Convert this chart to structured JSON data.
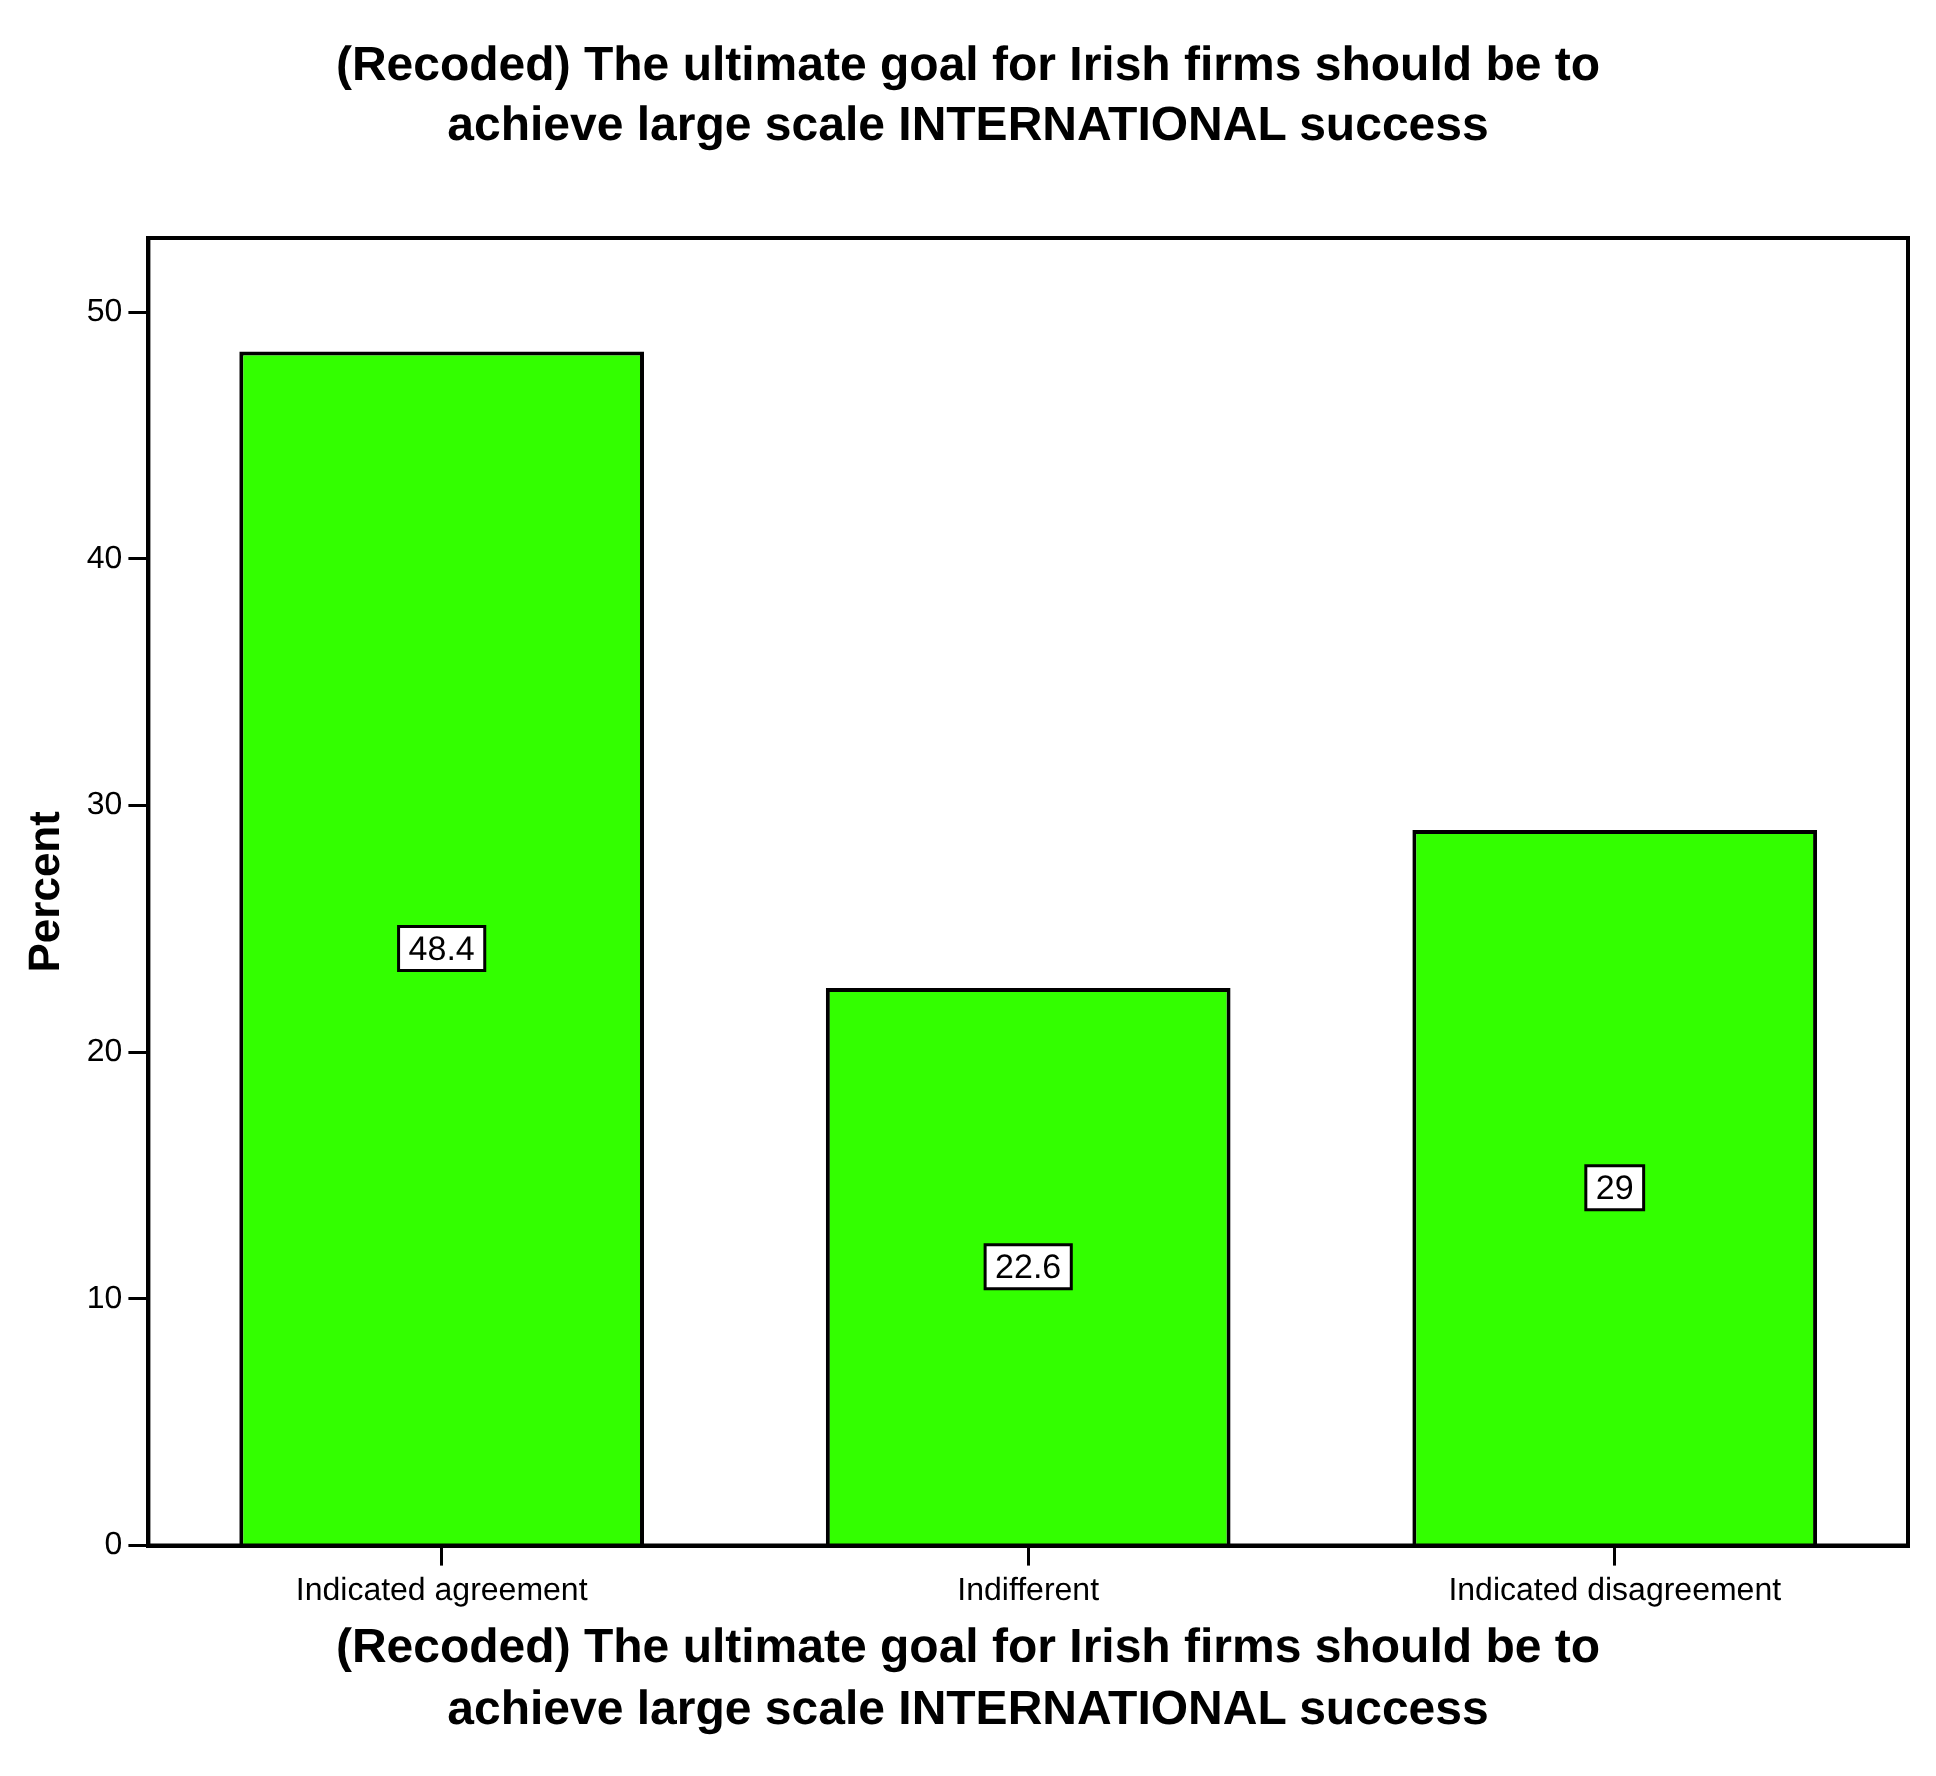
{
  "chart_data": {
    "type": "bar",
    "title": "(Recoded) The ultimate goal for Irish firms should be to achieve large scale INTERNATIONAL success",
    "xlabel": "(Recoded) The ultimate goal for Irish firms should be to achieve large scale INTERNATIONAL success",
    "ylabel": "Percent",
    "categories": [
      "Indicated agreement",
      "Indifferent",
      "Indicated disagreement"
    ],
    "values": [
      48.4,
      22.6,
      29
    ],
    "color": "#33ff00",
    "ylim": [
      0,
      53
    ],
    "yticks": [
      0,
      10,
      20,
      30,
      40,
      50
    ],
    "grid": false,
    "legend": false,
    "data_labels": true
  }
}
